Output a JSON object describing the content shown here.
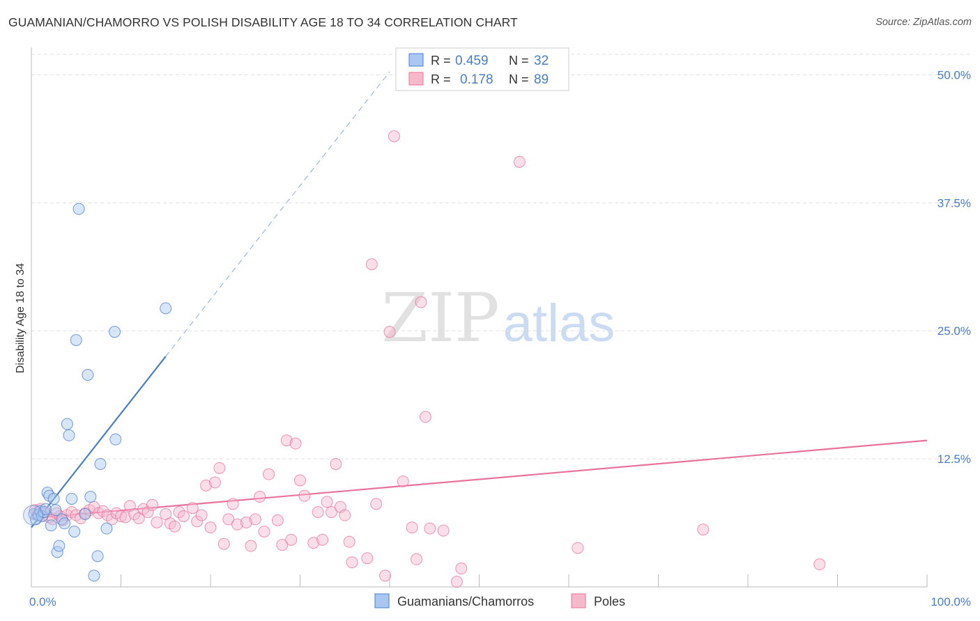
{
  "title": "GUAMANIAN/CHAMORRO VS POLISH DISABILITY AGE 18 TO 34 CORRELATION CHART",
  "source": "Source: ZipAtlas.com",
  "watermark": {
    "zip": "ZIP",
    "atlas": "atlas"
  },
  "colors": {
    "blue": "#4a7cc9",
    "blue_fill": "#a9c7f0",
    "pink": "#e8739a",
    "pink_fill": "#f6b9cc"
  },
  "stats": [
    {
      "r_label": "R = ",
      "r_value": "0.459",
      "n_label": "N = ",
      "n_value": "32"
    },
    {
      "r_label": "R = ",
      "r_value": "0.178",
      "n_label": "N = ",
      "n_value": "89"
    }
  ],
  "chart_data": {
    "type": "scatter",
    "title": "GUAMANIAN/CHAMORRO VS POLISH DISABILITY AGE 18 TO 34 CORRELATION CHART",
    "xlabel": "",
    "ylabel": "Disability Age 18 to 34",
    "xlim": [
      0,
      100
    ],
    "ylim": [
      0,
      52
    ],
    "x_tick_labels": [
      {
        "value": 0,
        "label": "0.0%"
      },
      {
        "value": 100,
        "label": "100.0%"
      }
    ],
    "y_ticks": [
      {
        "value": 12.5,
        "label": "12.5%"
      },
      {
        "value": 25,
        "label": "25.0%"
      },
      {
        "value": 37.5,
        "label": "37.5%"
      },
      {
        "value": 50,
        "label": "50.0%"
      }
    ],
    "legend": [
      "Guamanians/Chamorros",
      "Poles"
    ],
    "series": [
      {
        "name": "Guamanians/Chamorros",
        "color": "#4a7cc9",
        "trend": {
          "x": [
            0,
            15
          ],
          "y": [
            5.8,
            22.5
          ],
          "extended_to": [
            40,
            50.3
          ]
        },
        "points": [
          [
            0.3,
            7.1
          ],
          [
            0.5,
            6.6
          ],
          [
            0.8,
            7.0
          ],
          [
            1.0,
            7.4
          ],
          [
            1.2,
            6.9
          ],
          [
            1.4,
            7.3
          ],
          [
            1.6,
            7.6
          ],
          [
            1.8,
            9.2
          ],
          [
            2.0,
            8.9
          ],
          [
            2.2,
            6.0
          ],
          [
            2.5,
            8.6
          ],
          [
            2.7,
            7.5
          ],
          [
            2.9,
            3.4
          ],
          [
            3.1,
            4.0
          ],
          [
            3.4,
            6.6
          ],
          [
            3.7,
            6.2
          ],
          [
            4.0,
            15.9
          ],
          [
            4.2,
            14.8
          ],
          [
            4.5,
            8.6
          ],
          [
            4.8,
            5.4
          ],
          [
            5.0,
            24.1
          ],
          [
            5.3,
            36.9
          ],
          [
            6.0,
            7.1
          ],
          [
            6.3,
            20.7
          ],
          [
            6.6,
            8.8
          ],
          [
            7.4,
            3.0
          ],
          [
            7.7,
            12.0
          ],
          [
            8.4,
            5.7
          ],
          [
            9.3,
            24.9
          ],
          [
            9.4,
            14.4
          ],
          [
            7.0,
            1.1
          ],
          [
            15.0,
            27.2
          ]
        ]
      },
      {
        "name": "Poles",
        "color": "#e8739a",
        "trend": {
          "x": [
            0,
            100
          ],
          "y": [
            6.7,
            14.3
          ]
        },
        "points": [
          [
            0.4,
            7.5
          ],
          [
            0.7,
            7.1
          ],
          [
            1.0,
            7.6
          ],
          [
            1.3,
            7.0
          ],
          [
            1.6,
            7.3
          ],
          [
            2.0,
            6.8
          ],
          [
            2.4,
            6.6
          ],
          [
            2.8,
            7.2
          ],
          [
            3.2,
            6.9
          ],
          [
            3.5,
            6.5
          ],
          [
            4.0,
            7.0
          ],
          [
            4.5,
            7.3
          ],
          [
            5.0,
            7.0
          ],
          [
            5.5,
            6.7
          ],
          [
            6.0,
            7.2
          ],
          [
            6.5,
            7.5
          ],
          [
            7.0,
            7.8
          ],
          [
            7.5,
            7.2
          ],
          [
            8.0,
            7.4
          ],
          [
            8.5,
            7.0
          ],
          [
            9.0,
            6.6
          ],
          [
            9.5,
            7.2
          ],
          [
            10.0,
            6.9
          ],
          [
            10.5,
            6.8
          ],
          [
            11.0,
            7.9
          ],
          [
            11.5,
            7.1
          ],
          [
            12.0,
            6.7
          ],
          [
            12.5,
            7.6
          ],
          [
            13.0,
            7.3
          ],
          [
            13.5,
            8.0
          ],
          [
            14.0,
            6.3
          ],
          [
            15.0,
            7.1
          ],
          [
            15.5,
            6.2
          ],
          [
            16.0,
            5.9
          ],
          [
            16.5,
            7.3
          ],
          [
            17.0,
            6.9
          ],
          [
            18.0,
            7.7
          ],
          [
            18.5,
            6.4
          ],
          [
            19.0,
            7.0
          ],
          [
            19.5,
            9.9
          ],
          [
            20.0,
            5.8
          ],
          [
            20.5,
            10.2
          ],
          [
            21.0,
            11.6
          ],
          [
            21.5,
            4.2
          ],
          [
            22.0,
            6.6
          ],
          [
            22.5,
            8.1
          ],
          [
            23.0,
            6.1
          ],
          [
            24.0,
            6.3
          ],
          [
            24.5,
            4.0
          ],
          [
            25.0,
            6.6
          ],
          [
            25.5,
            8.8
          ],
          [
            26.0,
            5.4
          ],
          [
            26.5,
            11.0
          ],
          [
            27.5,
            6.5
          ],
          [
            28.0,
            4.1
          ],
          [
            28.5,
            14.3
          ],
          [
            29.0,
            4.6
          ],
          [
            29.5,
            14.0
          ],
          [
            30.0,
            10.4
          ],
          [
            30.5,
            8.9
          ],
          [
            31.5,
            4.3
          ],
          [
            32.0,
            7.3
          ],
          [
            32.5,
            4.6
          ],
          [
            33.0,
            8.3
          ],
          [
            33.5,
            7.3
          ],
          [
            34.0,
            12.0
          ],
          [
            34.5,
            7.8
          ],
          [
            35.0,
            7.0
          ],
          [
            35.5,
            4.4
          ],
          [
            35.8,
            2.4
          ],
          [
            37.5,
            2.8
          ],
          [
            38.0,
            31.5
          ],
          [
            38.5,
            8.1
          ],
          [
            39.5,
            1.1
          ],
          [
            40.0,
            24.9
          ],
          [
            40.5,
            44.0
          ],
          [
            41.5,
            10.3
          ],
          [
            42.5,
            5.8
          ],
          [
            43.0,
            2.7
          ],
          [
            43.5,
            27.8
          ],
          [
            44.0,
            16.6
          ],
          [
            44.5,
            5.7
          ],
          [
            46.0,
            5.5
          ],
          [
            47.5,
            0.5
          ],
          [
            48.0,
            1.8
          ],
          [
            54.5,
            41.5
          ],
          [
            61.0,
            3.8
          ],
          [
            75.0,
            5.6
          ],
          [
            88.0,
            2.2
          ]
        ]
      }
    ]
  }
}
